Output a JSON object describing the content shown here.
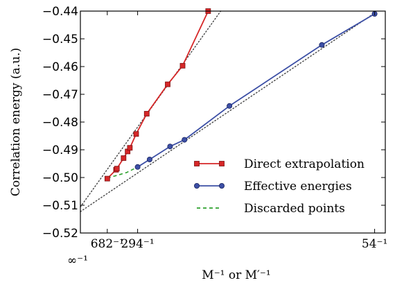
{
  "chart_data": {
    "type": "line",
    "title": "",
    "xlabel": "M⁻¹ or M′⁻¹",
    "ylabel": "Correlation energy (a.u.)",
    "x_axis_note": "reciprocal basis size M^-1 (x = 1/M)",
    "ylim": [
      -0.52,
      -0.44
    ],
    "yticks": [
      -0.52,
      -0.51,
      -0.5,
      -0.49,
      -0.48,
      -0.47,
      -0.46,
      -0.45,
      -0.44
    ],
    "ytick_labels": [
      "−0.52",
      "−0.51",
      "−0.50",
      "−0.49",
      "−0.48",
      "−0.47",
      "−0.46",
      "−0.45",
      "−0.44"
    ],
    "xlim": [
      -0.00025,
      0.0192
    ],
    "xticks": [
      {
        "value": 0.001466,
        "label": "682⁻¹"
      },
      {
        "value": 0.003401,
        "label": "294⁻¹"
      },
      {
        "value": 0.018519,
        "label": "54⁻¹"
      },
      {
        "value": 0.0,
        "label": "∞⁻¹"
      }
    ],
    "legend_position": "lower-right",
    "series": [
      {
        "name": "Direct extrapolation",
        "color": "#d62728",
        "marker": "square",
        "points": [
          [
            0.001466,
            -0.5004
          ],
          [
            0.002025,
            -0.4972
          ],
          [
            0.002079,
            -0.4968
          ],
          [
            0.002505,
            -0.493
          ],
          [
            0.002763,
            -0.4906
          ],
          [
            0.002905,
            -0.4893
          ],
          [
            0.003308,
            -0.4843
          ],
          [
            0.003983,
            -0.477
          ],
          [
            0.005319,
            -0.4664
          ],
          [
            0.00627,
            -0.4597
          ],
          [
            0.0079,
            -0.44
          ]
        ]
      },
      {
        "name": "Effective energies",
        "color": "#3c4fa5",
        "marker": "circle",
        "points": [
          [
            0.003401,
            -0.4962
          ],
          [
            0.004167,
            -0.4935
          ],
          [
            0.00547,
            -0.4888
          ],
          [
            0.00639,
            -0.4864
          ],
          [
            0.009259,
            -0.4742
          ],
          [
            0.015152,
            -0.4522
          ],
          [
            0.018519,
            -0.441
          ]
        ]
      },
      {
        "name": "Discarded points",
        "color": "#2ca02c",
        "marker": "none",
        "points": [
          [
            0.001466,
            -0.5002
          ],
          [
            0.0021,
            -0.4992
          ],
          [
            0.0027,
            -0.4982
          ],
          [
            0.003401,
            -0.4962
          ]
        ]
      }
    ],
    "reference_lines": [
      {
        "style": "dotted",
        "color": "#444444",
        "points": [
          [
            -0.00025,
            -0.5106
          ],
          [
            0.0087,
            -0.44
          ]
        ]
      },
      {
        "style": "dotted",
        "color": "#444444",
        "points": [
          [
            -0.00025,
            -0.5123
          ],
          [
            0.0187,
            -0.44
          ]
        ]
      }
    ]
  }
}
